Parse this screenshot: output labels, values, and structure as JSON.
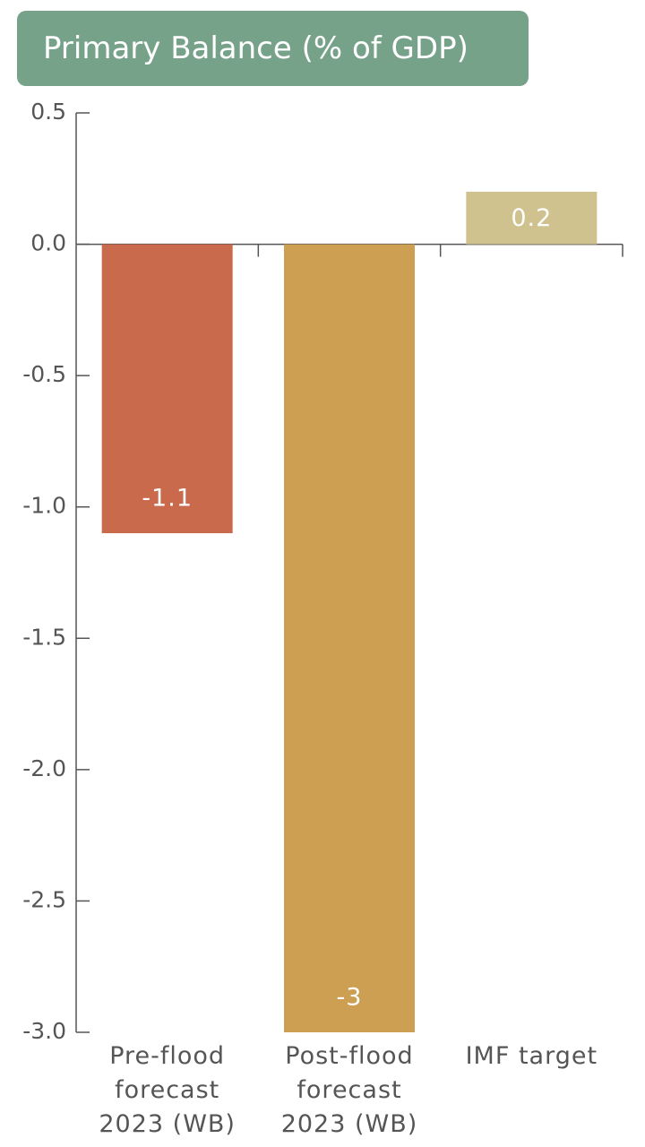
{
  "chart_data": {
    "type": "bar",
    "title": "Primary Balance (% of GDP)",
    "categories": [
      "Pre-flood forecast 2023 (WB)",
      "Post-flood forecast 2023 (WB)",
      "IMF target"
    ],
    "values": [
      -1.1,
      -3,
      0.2
    ],
    "colors": [
      "#c96a4c",
      "#cc9f52",
      "#d0c28e"
    ],
    "ylim": [
      -3,
      0.5
    ],
    "yticks": [
      {
        "value": -3,
        "label": "-3.0"
      },
      -2.5,
      {
        "value": -2,
        "label": "-2.0"
      },
      -1.5,
      {
        "value": -1,
        "label": "-1.0"
      },
      -0.5,
      {
        "value": 0,
        "label": "0.0"
      },
      0.5
    ],
    "grid": false
  }
}
